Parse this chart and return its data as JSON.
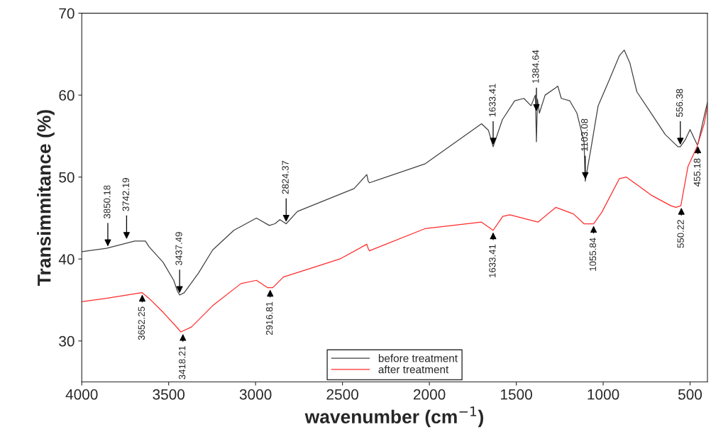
{
  "chart_data": {
    "type": "line",
    "xlabel": "wavenumber (cm$^{−1}$)",
    "ylabel": "Transimmitance (%)",
    "xlim": [
      4000,
      400
    ],
    "xticks": [
      4000,
      3500,
      3000,
      2500,
      2000,
      1500,
      1000,
      500
    ],
    "ylim": [
      25,
      70
    ],
    "yticks": [
      30,
      40,
      50,
      60,
      70
    ],
    "grid": false,
    "legend": "bottom",
    "marker": "none",
    "line_style": "solid",
    "series": [
      {
        "name": "before treatment",
        "color": "#404040",
        "x": [
          4000,
          3858,
          3695,
          3634,
          3613,
          3532,
          3471,
          3450,
          3437,
          3410,
          3328,
          3247,
          3125,
          2995,
          2921,
          2889,
          2860,
          2824,
          2759,
          2433,
          2360,
          2352,
          2345,
          2026,
          1700,
          1660,
          1633,
          1580,
          1509,
          1456,
          1415,
          1390,
          1384,
          1378,
          1367,
          1334,
          1273,
          1261,
          1241,
          1192,
          1151,
          1110,
          1103,
          1070,
          1029,
          968,
          907,
          879,
          846,
          806,
          724,
          643,
          570,
          556,
          529,
          500,
          460,
          455,
          419,
          400
        ],
        "values": [
          40.9,
          41.3,
          42.2,
          42.2,
          41.5,
          39.6,
          37.4,
          36.1,
          35.6,
          35.9,
          38.3,
          41.1,
          43.5,
          45.0,
          44.1,
          44.3,
          44.8,
          44.3,
          45.8,
          48.6,
          50.3,
          49.5,
          49.3,
          51.6,
          56.5,
          55.7,
          53.7,
          57.0,
          59.3,
          59.6,
          58.7,
          60.0,
          54.3,
          59.5,
          57.8,
          60.0,
          60.9,
          61.1,
          59.6,
          59.3,
          57.8,
          54.3,
          49.5,
          53.5,
          58.7,
          61.7,
          64.8,
          65.5,
          63.9,
          60.4,
          57.8,
          55.2,
          53.7,
          53.7,
          54.5,
          55.8,
          54.0,
          54.0,
          57.4,
          59.1
        ]
      },
      {
        "name": "after treatment",
        "color": "#ff2a2a",
        "x": [
          4000,
          3858,
          3654,
          3613,
          3532,
          3450,
          3430,
          3369,
          3247,
          3084,
          2995,
          2930,
          2916,
          2901,
          2840,
          2515,
          2360,
          2352,
          2345,
          2026,
          1700,
          1633,
          1578,
          1537,
          1375,
          1273,
          1171,
          1110,
          1055,
          1008,
          907,
          866,
          724,
          610,
          582,
          553,
          512,
          460,
          419,
          400
        ],
        "values": [
          34.8,
          35.2,
          35.9,
          35.2,
          33.5,
          31.6,
          31.1,
          31.7,
          34.3,
          37.0,
          37.4,
          36.5,
          36.5,
          36.5,
          37.8,
          40.0,
          41.8,
          41.3,
          41.0,
          43.7,
          44.5,
          43.5,
          45.2,
          45.4,
          44.5,
          46.3,
          45.5,
          44.3,
          44.3,
          45.7,
          49.8,
          50.0,
          47.8,
          46.5,
          46.3,
          46.5,
          51.3,
          53.7,
          56.5,
          58.7
        ]
      }
    ],
    "annotations": [
      {
        "text": "3850.18",
        "x": 3850,
        "y": 41.3
      },
      {
        "text": "3742.19",
        "x": 3742,
        "y": 42.2
      },
      {
        "text": "3437.49",
        "x": 3437,
        "y": 35.6
      },
      {
        "text": "2824.37",
        "x": 2824,
        "y": 44.3
      },
      {
        "text": "1633.41",
        "x": 1633,
        "y": 53.7
      },
      {
        "text": "1384.64",
        "x": 1384,
        "y": 57.8
      },
      {
        "text": "1103.08",
        "x": 1103,
        "y": 49.5
      },
      {
        "text": "556.38",
        "x": 556,
        "y": 53.7
      },
      {
        "text": "455.18",
        "x": 455,
        "y": 54.0
      },
      {
        "text": "3652.25",
        "x": 3652,
        "y": 35.9
      },
      {
        "text": "3418.21",
        "x": 3418,
        "y": 31.1
      },
      {
        "text": "2916.81",
        "x": 2916,
        "y": 36.5
      },
      {
        "text": "1633.41",
        "x": 1633,
        "y": 43.5
      },
      {
        "text": "1055.84",
        "x": 1055,
        "y": 44.3
      },
      {
        "text": "550.22",
        "x": 550,
        "y": 46.5
      }
    ]
  }
}
